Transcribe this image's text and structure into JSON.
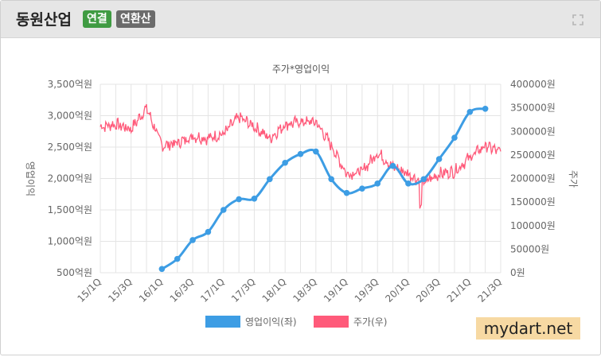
{
  "header": {
    "title": "동원산업",
    "badge_consolidated": "연결",
    "badge_annualized": "연환산",
    "expand_icon": "expand-icon"
  },
  "watermark": "mydart.net",
  "chart_data": {
    "type": "line",
    "title": "주가*영업이익",
    "ylabel_left": "영업이익",
    "ylabel_right": "주가",
    "categories": [
      "15/1Q",
      "15/3Q",
      "16/1Q",
      "16/3Q",
      "17/1Q",
      "17/3Q",
      "18/1Q",
      "18/3Q",
      "19/1Q",
      "19/3Q",
      "20/1Q",
      "20/3Q",
      "21/1Q",
      "21/3Q"
    ],
    "y_left": {
      "min": 500,
      "max": 3500,
      "ticks": [
        "500억원",
        "1,000억원",
        "1,500억원",
        "2,000억원",
        "2,500억원",
        "3,000억원",
        "3,500억원"
      ]
    },
    "y_right": {
      "min": 0,
      "max": 400000,
      "ticks": [
        "0원",
        "50000원",
        "100000원",
        "150000원",
        "200000원",
        "250000원",
        "300000원",
        "350000원",
        "400000원"
      ]
    },
    "grid": true,
    "legend_position": "bottom",
    "series": [
      {
        "name": "영업이익(좌)",
        "color": "#3d9de4",
        "axis": "left",
        "x": [
          "16/1Q",
          "16/2Q",
          "16/3Q",
          "16/4Q",
          "17/1Q",
          "17/2Q",
          "17/3Q",
          "17/4Q",
          "18/1Q",
          "18/2Q",
          "18/3Q",
          "18/4Q",
          "19/1Q",
          "19/2Q",
          "19/3Q",
          "19/4Q",
          "20/1Q",
          "20/2Q",
          "20/3Q",
          "20/4Q",
          "21/1Q",
          "21/2Q"
        ],
        "values": [
          560,
          720,
          1020,
          1150,
          1500,
          1670,
          1680,
          1990,
          2250,
          2390,
          2430,
          1990,
          1770,
          1840,
          1920,
          2200,
          1920,
          1990,
          2310,
          2650,
          3060,
          3110
        ]
      },
      {
        "name": "주가(우)",
        "color": "#ff5a7a",
        "axis": "right",
        "anchors_x": [
          "15/1Q",
          "15/2Q",
          "15/3Q",
          "15/4Q",
          "16/1Q",
          "16/2Q",
          "16/3Q",
          "16/4Q",
          "17/1Q",
          "17/2Q",
          "17/3Q",
          "17/4Q",
          "18/1Q",
          "18/2Q",
          "18/3Q",
          "18/4Q",
          "19/1Q",
          "19/2Q",
          "19/3Q",
          "19/4Q",
          "20/1Q",
          "20/2Q",
          "20/3Q",
          "20/4Q",
          "21/1Q",
          "21/2Q",
          "21/3Q"
        ],
        "anchors": [
          310000,
          315000,
          305000,
          350000,
          270000,
          275000,
          290000,
          285000,
          295000,
          330000,
          310000,
          285000,
          315000,
          320000,
          320000,
          270000,
          210000,
          215000,
          255000,
          225000,
          210000,
          190000,
          210000,
          215000,
          245000,
          270000,
          255000
        ]
      }
    ]
  }
}
